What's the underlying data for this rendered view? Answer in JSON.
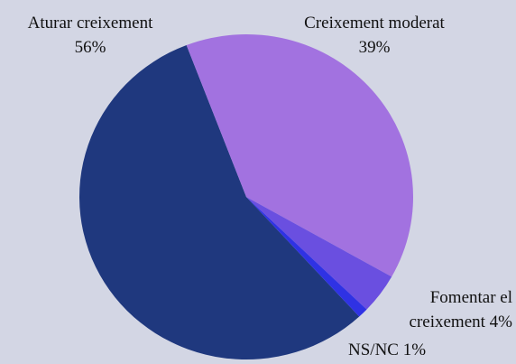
{
  "chart_data": {
    "type": "pie",
    "categories": [
      "Aturar creixement",
      "Creixement moderat",
      "Fomentar el creixement",
      "NS/NC"
    ],
    "values": [
      56,
      39,
      4,
      1
    ],
    "value_labels": [
      "56%",
      "39%",
      "4%",
      "1%"
    ],
    "colors": [
      "#1f387e",
      "#a272e0",
      "#6a4fe0",
      "#2f32e4"
    ]
  }
}
